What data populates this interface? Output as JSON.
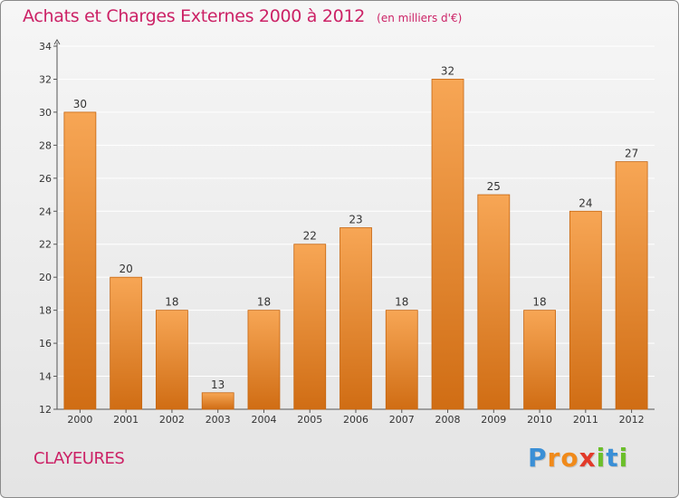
{
  "header": {
    "title": "Achats et Charges Externes 2000 à 2012",
    "unit": "(en milliers d'€)"
  },
  "footer": {
    "commune": "CLAYEURES",
    "brand_letters": [
      {
        "ch": "P",
        "color": "#3a8fd6"
      },
      {
        "ch": "r",
        "color": "#f08a1a"
      },
      {
        "ch": "o",
        "color": "#f08a1a"
      },
      {
        "ch": "x",
        "color": "#e23a2a"
      },
      {
        "ch": "i",
        "color": "#6bbf2a"
      },
      {
        "ch": "t",
        "color": "#3a8fd6"
      },
      {
        "ch": "i",
        "color": "#6bbf2a"
      }
    ]
  },
  "colors": {
    "title": "#cc2266",
    "bar_top": "#f7a655",
    "bar_bottom": "#d06d14",
    "bar_edge": "#c56510",
    "grid": "#ffffff",
    "axis": "#555555"
  },
  "chart_data": {
    "type": "bar",
    "categories": [
      "2000",
      "2001",
      "2002",
      "2003",
      "2004",
      "2005",
      "2006",
      "2007",
      "2008",
      "2009",
      "2010",
      "2011",
      "2012"
    ],
    "values": [
      30,
      20,
      18,
      13,
      18,
      22,
      23,
      18,
      32,
      25,
      18,
      24,
      27
    ],
    "ylim": [
      12,
      34
    ],
    "yticks": [
      12,
      14,
      16,
      18,
      20,
      22,
      24,
      26,
      28,
      30,
      32,
      34
    ],
    "grid": true,
    "legend": "none",
    "data_labels": true
  }
}
